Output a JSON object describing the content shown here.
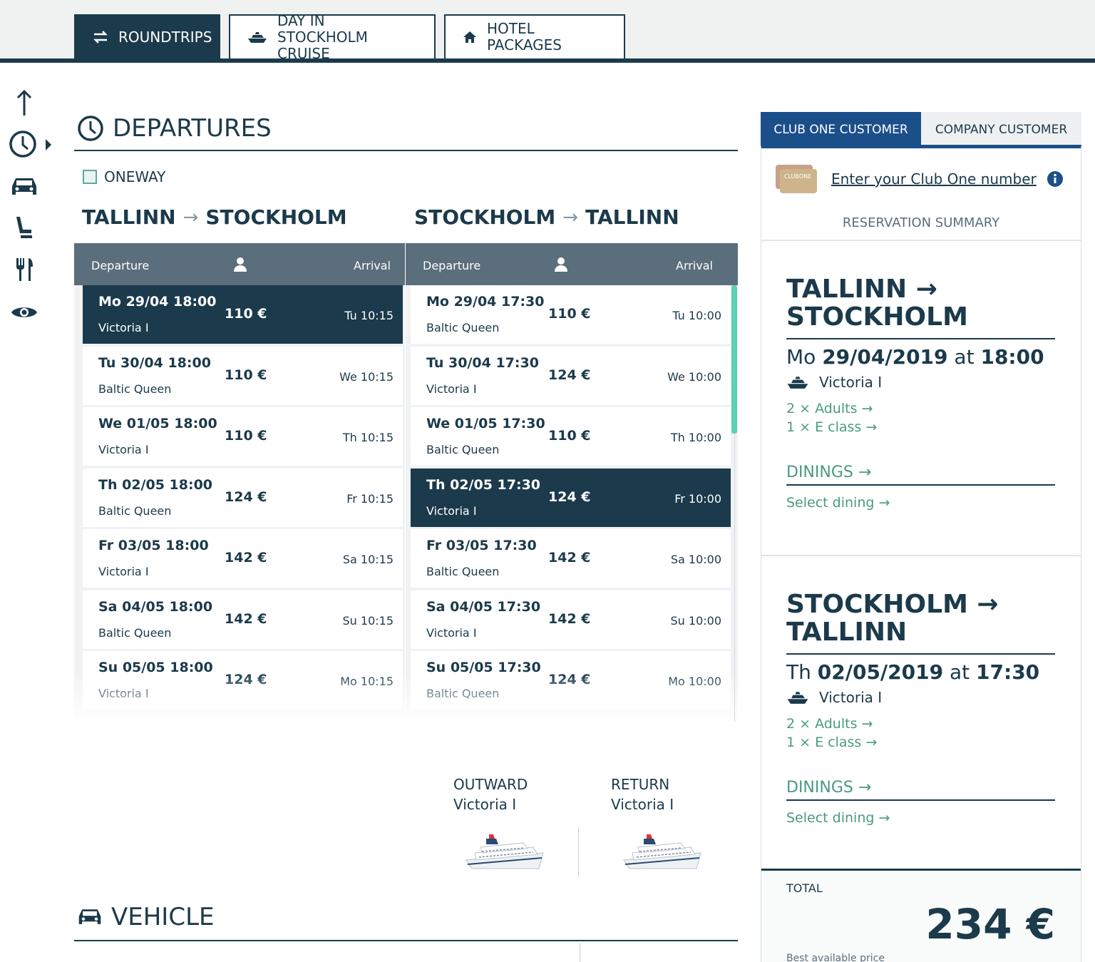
{
  "top_tabs": {
    "roundtrips": "ROUNDTRIPS",
    "day_cruise_line1": "DAY IN",
    "day_cruise_line2": "STOCKHOLM CRUISE",
    "hotel": "HOTEL PACKAGES"
  },
  "departures": {
    "title": "DEPARTURES",
    "oneway_label": "ONEWAY",
    "outbound_from": "TALLINN",
    "outbound_to": "STOCKHOLM",
    "return_from": "STOCKHOLM",
    "return_to": "TALLINN",
    "arrow": "→",
    "col_departure": "Departure",
    "col_arrival": "Arrival",
    "outbound_rows": [
      {
        "datetime": "Mo 29/04 18:00",
        "ship": "Victoria I",
        "price": "110 €",
        "arrival": "Tu 10:15",
        "selected": true
      },
      {
        "datetime": "Tu 30/04 18:00",
        "ship": "Baltic Queen",
        "price": "110 €",
        "arrival": "We 10:15",
        "selected": false
      },
      {
        "datetime": "We 01/05 18:00",
        "ship": "Victoria I",
        "price": "110 €",
        "arrival": "Th 10:15",
        "selected": false
      },
      {
        "datetime": "Th 02/05 18:00",
        "ship": "Baltic Queen",
        "price": "124 €",
        "arrival": "Fr 10:15",
        "selected": false
      },
      {
        "datetime": "Fr 03/05 18:00",
        "ship": "Victoria I",
        "price": "142 €",
        "arrival": "Sa 10:15",
        "selected": false
      },
      {
        "datetime": "Sa 04/05 18:00",
        "ship": "Baltic Queen",
        "price": "142 €",
        "arrival": "Su 10:15",
        "selected": false
      },
      {
        "datetime": "Su 05/05 18:00",
        "ship": "Victoria I",
        "price": "124 €",
        "arrival": "Mo 10:15",
        "selected": false
      }
    ],
    "return_rows": [
      {
        "datetime": "Mo 29/04 17:30",
        "ship": "Baltic Queen",
        "price": "110 €",
        "arrival": "Tu 10:00",
        "selected": false
      },
      {
        "datetime": "Tu 30/04 17:30",
        "ship": "Victoria I",
        "price": "124 €",
        "arrival": "We 10:00",
        "selected": false
      },
      {
        "datetime": "We 01/05 17:30",
        "ship": "Baltic Queen",
        "price": "110 €",
        "arrival": "Th 10:00",
        "selected": false
      },
      {
        "datetime": "Th 02/05 17:30",
        "ship": "Victoria I",
        "price": "124 €",
        "arrival": "Fr 10:00",
        "selected": true
      },
      {
        "datetime": "Fr 03/05 17:30",
        "ship": "Baltic Queen",
        "price": "142 €",
        "arrival": "Sa 10:00",
        "selected": false
      },
      {
        "datetime": "Sa 04/05 17:30",
        "ship": "Victoria I",
        "price": "142 €",
        "arrival": "Su 10:00",
        "selected": false
      },
      {
        "datetime": "Su 05/05 17:30",
        "ship": "Baltic Queen",
        "price": "124 €",
        "arrival": "Mo 10:00",
        "selected": false
      }
    ]
  },
  "ship_summary": {
    "outward_label": "OUTWARD",
    "outward_ship": "Victoria I",
    "return_label": "RETURN",
    "return_ship": "Victoria I"
  },
  "vehicle": {
    "title": "VEHICLE"
  },
  "right_panel": {
    "tab_club": "CLUB ONE CUSTOMER",
    "tab_company": "COMPANY CUSTOMER",
    "club_card_text": "CLUBONE",
    "club_link": "Enter your Club One number",
    "summary_title": "RESERVATION SUMMARY",
    "legs": [
      {
        "route_line1": "TALLINN →",
        "route_line2": "STOCKHOLM",
        "day": "Mo",
        "date": "29/04/2019",
        "at": "at",
        "time": "18:00",
        "ship": "Victoria I",
        "adults": "2 × Adults →",
        "class": "1 × E class →",
        "dinings": "DININGS →",
        "select_dining": "Select dining →"
      },
      {
        "route_line1": "STOCKHOLM →",
        "route_line2": "TALLINN",
        "day": "Th",
        "date": "02/05/2019",
        "at": "at",
        "time": "17:30",
        "ship": "Victoria I",
        "adults": "2 × Adults →",
        "class": "1 × E class →",
        "dinings": "DININGS →",
        "select_dining": "Select dining →"
      }
    ],
    "total_label": "TOTAL",
    "total_value": "234 €",
    "best_price": "Best available price"
  },
  "colors": {
    "navy": "#1b3a4b",
    "blue_tab": "#1b4f8a",
    "green_link": "#4a9a82",
    "scroll_accent": "#5fd0b3"
  },
  "icons": [
    "swap-arrows-icon",
    "ship-icon",
    "home-icon",
    "arrow-up-icon",
    "clock-icon",
    "car-icon",
    "seat-icon",
    "cutlery-icon",
    "eye-icon",
    "person-icon",
    "info-icon"
  ]
}
